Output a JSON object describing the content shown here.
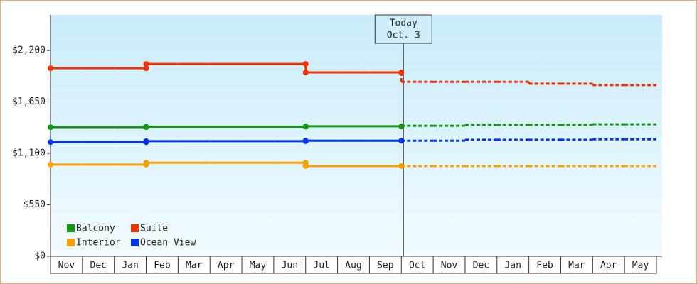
{
  "chart_data": {
    "type": "step-line",
    "categories": [
      "Nov",
      "Dec",
      "Jan",
      "Feb",
      "Mar",
      "Apr",
      "May",
      "Jun",
      "Jul",
      "Aug",
      "Sep",
      "Oct",
      "Nov",
      "Dec",
      "Jan",
      "Feb",
      "Mar",
      "Apr",
      "May"
    ],
    "ylim": [
      0,
      2580
    ],
    "yticks": [
      {
        "value": 0,
        "label": "$0"
      },
      {
        "value": 550,
        "label": "$550"
      },
      {
        "value": 1100,
        "label": "$1,100"
      },
      {
        "value": 1650,
        "label": "$1,650"
      },
      {
        "value": 2200,
        "label": "$2,200"
      }
    ],
    "today": [
      "Today",
      "Oct. 3"
    ],
    "series": [
      {
        "name": "Balcony",
        "color": "#119911",
        "values": [
          1380,
          1380,
          1380,
          1385,
          1385,
          1385,
          1385,
          1385,
          1390,
          1390,
          1390,
          null,
          null,
          null,
          null,
          null,
          null,
          null,
          null
        ],
        "projected_values": [
          null,
          null,
          null,
          null,
          null,
          null,
          null,
          null,
          null,
          null,
          null,
          1395,
          1395,
          1405,
          1405,
          1405,
          1405,
          1410,
          1410
        ]
      },
      {
        "name": "Suite",
        "color": "#ee3300",
        "values": [
          2010,
          2010,
          2010,
          2055,
          2055,
          2055,
          2055,
          2055,
          1965,
          1965,
          1965,
          null,
          null,
          null,
          null,
          null,
          null,
          null,
          null
        ],
        "projected_values": [
          null,
          null,
          null,
          null,
          null,
          null,
          null,
          null,
          null,
          null,
          null,
          1865,
          1865,
          1865,
          1865,
          1845,
          1845,
          1830,
          1830
        ]
      },
      {
        "name": "Interior",
        "color": "#f5a000",
        "values": [
          980,
          980,
          980,
          1000,
          1000,
          1000,
          1000,
          1000,
          965,
          965,
          965,
          null,
          null,
          null,
          null,
          null,
          null,
          null,
          null
        ],
        "projected_values": [
          null,
          null,
          null,
          null,
          null,
          null,
          null,
          null,
          null,
          null,
          null,
          965,
          965,
          965,
          965,
          965,
          965,
          965,
          965
        ]
      },
      {
        "name": "Ocean View",
        "color": "#0033ee",
        "values": [
          1220,
          1220,
          1220,
          1230,
          1230,
          1230,
          1230,
          1230,
          1235,
          1235,
          1235,
          null,
          null,
          null,
          null,
          null,
          null,
          null,
          null
        ],
        "projected_values": [
          null,
          null,
          null,
          null,
          null,
          null,
          null,
          null,
          null,
          null,
          null,
          1235,
          1235,
          1245,
          1245,
          1245,
          1245,
          1250,
          1250
        ]
      }
    ]
  }
}
